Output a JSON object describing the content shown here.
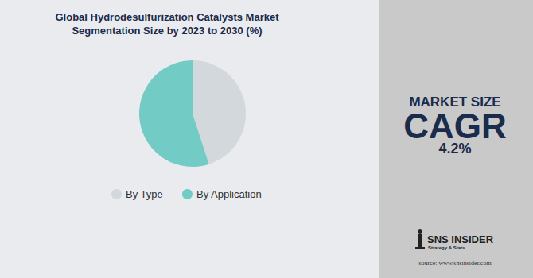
{
  "chart_data": {
    "type": "pie",
    "title": "Global Hydrodesulfurization Catalysts Market\nSegmentation Size by 2023 to 2030 (%)",
    "categories": [
      "By Type",
      "By Application"
    ],
    "values": [
      45,
      55
    ],
    "colors": [
      "#d3d8dd",
      "#72cbc4"
    ],
    "legend": "bottom",
    "data_labels": false,
    "annotations": [
      "MARKET SIZE",
      "CAGR",
      "4.2%"
    ]
  },
  "branding": {
    "logo": "SNS INSIDER",
    "tagline": "Strategy & Stats",
    "source": "source: www.snsinsider.com"
  }
}
